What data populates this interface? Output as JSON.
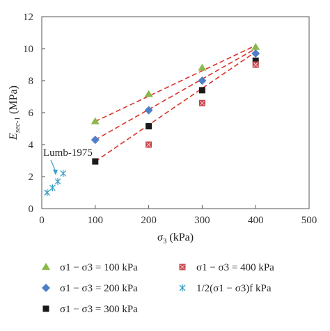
{
  "chart_data": {
    "type": "scatter",
    "xlabel": "σ3 (kPa)",
    "ylabel": "Esec-1 (MPa)",
    "xlim": [
      0,
      500
    ],
    "ylim": [
      0,
      12
    ],
    "xticks": [
      "0",
      "100",
      "200",
      "300",
      "400",
      "500"
    ],
    "yticks": [
      "0",
      "2",
      "4",
      "6",
      "8",
      "10",
      "12"
    ],
    "grid": false,
    "legend_placement": "bottom",
    "annotation": "Lumb-1975",
    "series": [
      {
        "name": "σ1 − σ3 = 100 kPa",
        "marker": "triangle",
        "color": "#8ab84a",
        "x": [
          100,
          200,
          300,
          400
        ],
        "y": [
          5.45,
          7.15,
          8.8,
          10.1
        ]
      },
      {
        "name": "σ1 − σ3 = 200 kPa",
        "marker": "diamond",
        "color": "#4f7fc8",
        "x": [
          100,
          200,
          300,
          400
        ],
        "y": [
          4.3,
          6.15,
          8.0,
          9.7
        ]
      },
      {
        "name": "σ1 − σ3 = 300 kPa",
        "marker": "square",
        "color": "#1a1a1a",
        "x": [
          100,
          200,
          300,
          400
        ],
        "y": [
          2.95,
          5.15,
          7.4,
          9.25
        ]
      },
      {
        "name": "σ1 − σ3 = 400 kPa",
        "marker": "square-x",
        "color": "#c8434a",
        "x": [
          200,
          300,
          400
        ],
        "y": [
          4.0,
          6.6,
          9.0
        ]
      },
      {
        "name": "1/2(σ1 − σ3)f kPa",
        "marker": "asterisk",
        "color": "#3aa0c8",
        "x": [
          10,
          20,
          30,
          40
        ],
        "y": [
          1.0,
          1.3,
          1.7,
          2.2
        ]
      }
    ],
    "trendlines": [
      {
        "color": "#d9342b",
        "style": "dashed",
        "x": [
          100,
          400
        ],
        "y": [
          5.45,
          10.2
        ]
      },
      {
        "color": "#d9342b",
        "style": "dashed",
        "x": [
          100,
          400
        ],
        "y": [
          4.3,
          10.0
        ]
      },
      {
        "color": "#d9342b",
        "style": "dashed",
        "x": [
          100,
          400
        ],
        "y": [
          2.95,
          9.8
        ]
      }
    ]
  }
}
